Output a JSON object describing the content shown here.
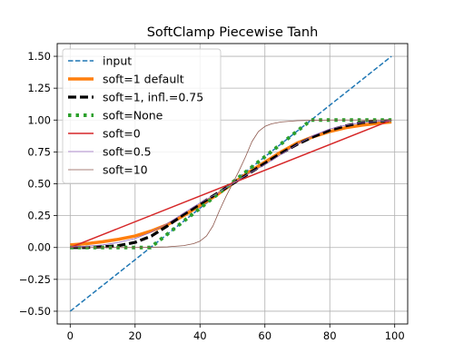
{
  "chart_data": {
    "type": "line",
    "title": "SoftClamp Piecewise Tanh",
    "xlabel": "",
    "ylabel": "",
    "xlim": [
      -4,
      104
    ],
    "ylim": [
      -0.6,
      1.6
    ],
    "xticks": [
      0,
      20,
      40,
      60,
      80,
      100
    ],
    "yticks": [
      -0.5,
      -0.25,
      0.0,
      0.25,
      0.5,
      0.75,
      1.0,
      1.25,
      1.5
    ],
    "xtick_labels": [
      "0",
      "20",
      "40",
      "60",
      "80",
      "100"
    ],
    "ytick_labels": [
      "−0.50",
      "−0.25",
      "0.00",
      "0.25",
      "0.50",
      "0.75",
      "1.00",
      "1.25",
      "1.50"
    ],
    "grid": true,
    "legend_position": "upper-left",
    "series": [
      {
        "name": "input",
        "color": "#1f77b4",
        "style": "dashed",
        "x": [
          0,
          99
        ],
        "y": [
          -0.5,
          1.5
        ]
      },
      {
        "name": "soft=1 default",
        "color": "#ff7f0e",
        "style": "solid-thick",
        "x": [
          0,
          5,
          10,
          15,
          20,
          25,
          30,
          35,
          40,
          45,
          50,
          55,
          60,
          65,
          70,
          75,
          80,
          85,
          90,
          95,
          99
        ],
        "y": [
          0.02,
          0.03,
          0.045,
          0.065,
          0.09,
          0.13,
          0.18,
          0.25,
          0.33,
          0.41,
          0.5,
          0.59,
          0.67,
          0.75,
          0.82,
          0.87,
          0.91,
          0.94,
          0.96,
          0.975,
          0.985
        ]
      },
      {
        "name": "soft=1, infl.=0.75",
        "color": "#000000",
        "style": "dashed-thick",
        "x": [
          0,
          5,
          10,
          15,
          20,
          25,
          30,
          35,
          40,
          45,
          50,
          55,
          60,
          65,
          70,
          75,
          80,
          85,
          90,
          95,
          99
        ],
        "y": [
          0.0,
          0.0,
          0.005,
          0.015,
          0.04,
          0.09,
          0.17,
          0.26,
          0.34,
          0.42,
          0.5,
          0.58,
          0.66,
          0.74,
          0.81,
          0.87,
          0.92,
          0.955,
          0.98,
          0.99,
          0.995
        ]
      },
      {
        "name": "soft=None",
        "color": "#2ca02c",
        "style": "dotted-thick",
        "x": [
          0,
          24.75,
          74.25,
          99
        ],
        "y": [
          0.0,
          0.0,
          1.0,
          1.0
        ]
      },
      {
        "name": "soft=0",
        "color": "#d62728",
        "style": "solid",
        "x": [
          0,
          99
        ],
        "y": [
          0.0,
          1.0
        ]
      },
      {
        "name": "soft=0.5",
        "color": "#9467bd",
        "style": "solid-thin",
        "x": [
          0,
          5,
          10,
          15,
          20,
          25,
          30,
          35,
          40,
          45,
          50,
          55,
          60,
          65,
          70,
          75,
          80,
          85,
          90,
          95,
          99
        ],
        "y": [
          0.005,
          0.01,
          0.02,
          0.04,
          0.07,
          0.12,
          0.19,
          0.27,
          0.35,
          0.42,
          0.5,
          0.58,
          0.65,
          0.73,
          0.81,
          0.88,
          0.93,
          0.96,
          0.98,
          0.99,
          0.995
        ]
      },
      {
        "name": "soft=10",
        "color": "#8c564b",
        "style": "solid-thin",
        "x": [
          0,
          10,
          20,
          30,
          35,
          38,
          40,
          42,
          44,
          46,
          48,
          50,
          52,
          54,
          56,
          58,
          60,
          62,
          65,
          70,
          80,
          90,
          99
        ],
        "y": [
          0.0,
          0.0,
          0.0,
          0.005,
          0.015,
          0.03,
          0.05,
          0.09,
          0.17,
          0.29,
          0.4,
          0.5,
          0.6,
          0.71,
          0.83,
          0.91,
          0.95,
          0.97,
          0.985,
          0.995,
          1.0,
          1.0,
          1.0
        ]
      }
    ]
  }
}
